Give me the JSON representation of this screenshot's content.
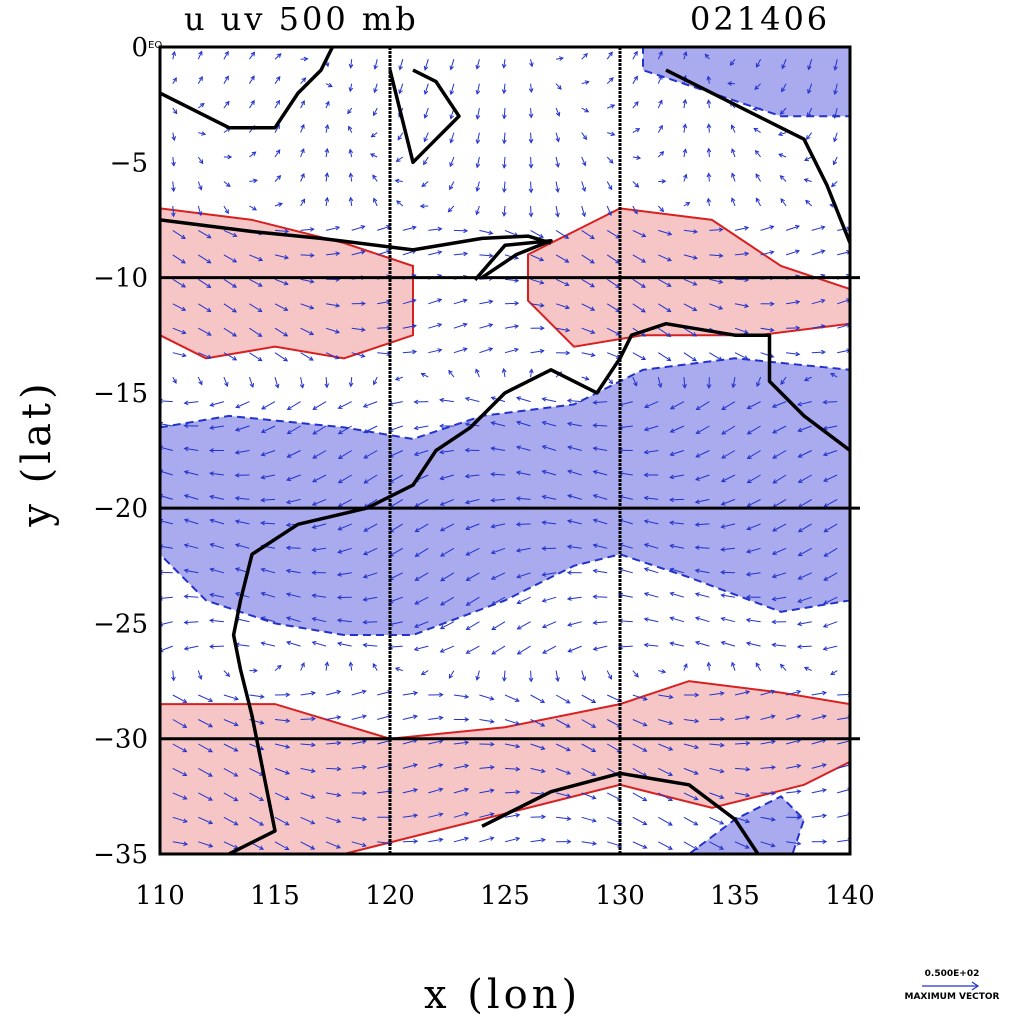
{
  "title": {
    "variable": "u uv 500 mb",
    "date": "021406"
  },
  "eq_marker": "EQ",
  "reference_vector": {
    "value_label": "0.500E+02",
    "caption": "MAXIMUM VECTOR"
  },
  "chart_data": {
    "type": "map",
    "xlabel": "x (lon)",
    "ylabel": "y (lat)",
    "xlim": [
      110,
      140
    ],
    "ylim": [
      -35,
      0
    ],
    "x_ticks": [
      "110",
      "115",
      "120",
      "125",
      "130",
      "135",
      "140"
    ],
    "y_ticks": [
      "0",
      "−5",
      "−10",
      "−15",
      "−20",
      "−25",
      "−30",
      "−35"
    ],
    "grid_lon": [
      120,
      130
    ],
    "grid_lat": [
      -10,
      -20,
      -30
    ],
    "colors": {
      "positive_fill": "#f6c6c6",
      "positive_line": "#d92020",
      "negative_fill": "#aaaaee",
      "negative_line": "#2233cc",
      "coast": "#000000",
      "vector": "#2233cc"
    },
    "positive_bands": [
      {
        "name": "northern-band-west",
        "points": [
          [
            110,
            -7
          ],
          [
            114,
            -7.5
          ],
          [
            118,
            -8.5
          ],
          [
            121,
            -9.5
          ],
          [
            121,
            -12.5
          ],
          [
            118,
            -13.5
          ],
          [
            115,
            -13
          ],
          [
            112,
            -13.5
          ],
          [
            110,
            -12.5
          ]
        ]
      },
      {
        "name": "northern-band-east",
        "points": [
          [
            126,
            -9
          ],
          [
            128,
            -8
          ],
          [
            130,
            -7
          ],
          [
            134,
            -7.5
          ],
          [
            137,
            -9.5
          ],
          [
            140,
            -10.5
          ],
          [
            140,
            -12
          ],
          [
            136,
            -12.5
          ],
          [
            131,
            -12.5
          ],
          [
            128,
            -13
          ],
          [
            126,
            -11
          ]
        ]
      },
      {
        "name": "southern-band",
        "points": [
          [
            110,
            -28.5
          ],
          [
            115,
            -28.5
          ],
          [
            120,
            -30
          ],
          [
            125,
            -29.5
          ],
          [
            130,
            -28.5
          ],
          [
            133,
            -27.5
          ],
          [
            137,
            -28
          ],
          [
            140,
            -28.5
          ],
          [
            140,
            -31
          ],
          [
            138,
            -32
          ],
          [
            134,
            -33
          ],
          [
            130,
            -32
          ],
          [
            126,
            -33
          ],
          [
            122,
            -34
          ],
          [
            118,
            -35
          ],
          [
            110,
            -35
          ]
        ]
      }
    ],
    "negative_bands": [
      {
        "name": "central-band",
        "points": [
          [
            110,
            -16.5
          ],
          [
            113,
            -16
          ],
          [
            118,
            -16.5
          ],
          [
            121,
            -17
          ],
          [
            124,
            -16
          ],
          [
            128,
            -15.5
          ],
          [
            131,
            -14
          ],
          [
            135,
            -13.5
          ],
          [
            140,
            -14
          ],
          [
            140,
            -24
          ],
          [
            137,
            -24.5
          ],
          [
            133,
            -23
          ],
          [
            130,
            -22
          ],
          [
            128,
            -22.5
          ],
          [
            125,
            -24
          ],
          [
            121,
            -25.5
          ],
          [
            118,
            -25.5
          ],
          [
            115,
            -25
          ],
          [
            112,
            -24
          ],
          [
            110,
            -22
          ]
        ]
      },
      {
        "name": "north-east-cap",
        "points": [
          [
            131,
            0
          ],
          [
            140,
            0
          ],
          [
            140,
            -3
          ],
          [
            137,
            -3
          ],
          [
            134,
            -2
          ],
          [
            131,
            -1
          ]
        ]
      },
      {
        "name": "south-east-blob",
        "points": [
          [
            133,
            -35
          ],
          [
            135,
            -33.5
          ],
          [
            137,
            -32.5
          ],
          [
            138,
            -33.5
          ],
          [
            137.5,
            -35
          ]
        ]
      }
    ],
    "coastlines": [
      {
        "name": "australia-coast",
        "points": [
          [
            113,
            -35
          ],
          [
            115,
            -34
          ],
          [
            114.5,
            -31.5
          ],
          [
            114,
            -29
          ],
          [
            113.5,
            -27
          ],
          [
            113.2,
            -25.5
          ],
          [
            113.5,
            -24
          ],
          [
            114,
            -22
          ],
          [
            116,
            -20.7
          ],
          [
            119,
            -20
          ],
          [
            121,
            -19
          ],
          [
            122,
            -17.5
          ],
          [
            123.5,
            -16.5
          ],
          [
            125,
            -15
          ],
          [
            127,
            -14
          ],
          [
            129,
            -15
          ],
          [
            130,
            -13.5
          ],
          [
            130.5,
            -12.5
          ],
          [
            132,
            -12
          ],
          [
            135,
            -12.5
          ],
          [
            136.5,
            -12.5
          ],
          [
            136.5,
            -14.5
          ],
          [
            138,
            -16
          ],
          [
            140,
            -17.5
          ]
        ]
      },
      {
        "name": "south-coast",
        "points": [
          [
            124,
            -33.8
          ],
          [
            127,
            -32.3
          ],
          [
            130,
            -31.5
          ],
          [
            133,
            -32
          ],
          [
            135,
            -33.5
          ],
          [
            136,
            -35
          ]
        ]
      },
      {
        "name": "nusa-tenggara",
        "points": [
          [
            110,
            -7.5
          ],
          [
            114,
            -8
          ],
          [
            117,
            -8.3
          ],
          [
            121,
            -8.8
          ],
          [
            124,
            -8.3
          ],
          [
            126,
            -8.2
          ],
          [
            127,
            -8.5
          ]
        ]
      },
      {
        "name": "sulawesi",
        "points": [
          [
            120,
            -1
          ],
          [
            120.5,
            -3
          ],
          [
            121,
            -5
          ],
          [
            122,
            -4
          ],
          [
            123,
            -3
          ],
          [
            122,
            -1.5
          ],
          [
            121,
            -1
          ]
        ]
      },
      {
        "name": "borneo-south",
        "points": [
          [
            110,
            -2
          ],
          [
            113,
            -3.5
          ],
          [
            115,
            -3.5
          ],
          [
            116,
            -2
          ],
          [
            117,
            -1
          ],
          [
            117.5,
            0
          ]
        ]
      },
      {
        "name": "new-guinea-south",
        "points": [
          [
            132,
            -1
          ],
          [
            134,
            -2
          ],
          [
            136,
            -3
          ],
          [
            138,
            -4
          ],
          [
            139,
            -6
          ],
          [
            140,
            -8.5
          ]
        ]
      },
      {
        "name": "timor",
        "points": [
          [
            124,
            -10
          ],
          [
            125.5,
            -9
          ],
          [
            127,
            -8.4
          ],
          [
            125,
            -8.6
          ],
          [
            123.7,
            -10.1
          ]
        ]
      }
    ],
    "wind_field": {
      "nx": 27,
      "ny": 33
    }
  }
}
